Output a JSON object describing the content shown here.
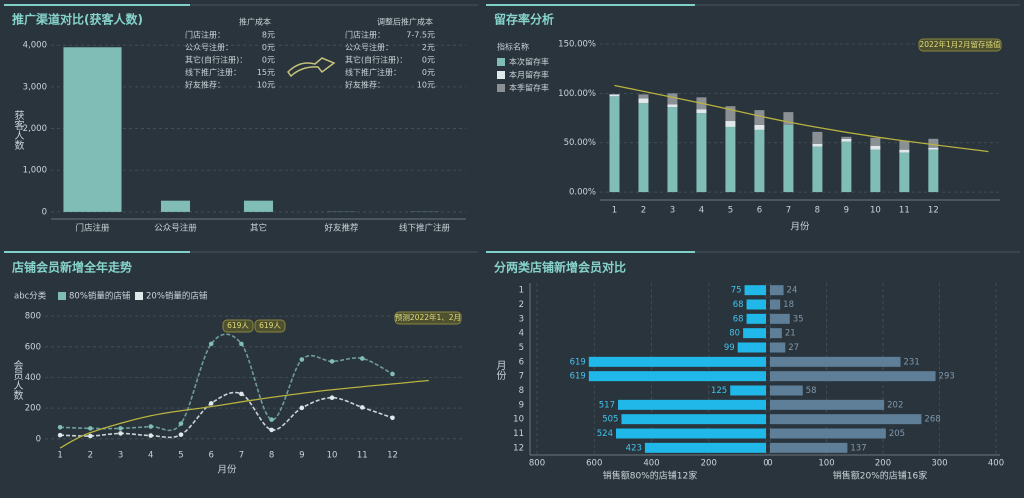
{
  "chart_data": [
    {
      "type": "bar",
      "title": "推广渠道对比(获客人数)",
      "y_label": "获客人数",
      "categories": [
        "门店注册",
        "公众号注册",
        "其它",
        "好友推荐",
        "线下推广注册"
      ],
      "values": [
        3950,
        270,
        270,
        5,
        5
      ],
      "color": "#7fbdb6",
      "ylim": [
        -170,
        4100
      ],
      "yticks": [
        0,
        {
          "value": 1000,
          "label": "1,000"
        },
        {
          "value": 2000,
          "label": "2,000"
        },
        {
          "value": 3000,
          "label": "3,000"
        },
        {
          "value": 4000,
          "label": "4,000"
        }
      ],
      "grid": true,
      "annotations": [
        {
          "title": "推广成本",
          "rows": [
            [
              "门店注册：",
              "8元"
            ],
            [
              "公众号注册：",
              "0元"
            ],
            [
              "其它(自行注册)：",
              "0元"
            ],
            [
              "线下推广注册：",
              "15元"
            ],
            [
              "好友推荐：",
              "10元"
            ]
          ]
        },
        {
          "title": "调整后推广成本",
          "rows": [
            [
              "门店注册：",
              "7-7.5元"
            ],
            [
              "公众号注册：",
              "2元"
            ],
            [
              "其它(自行注册)：",
              "0元"
            ],
            [
              "线下推广注册：",
              "0元"
            ],
            [
              "好友推荐：",
              "10元"
            ]
          ]
        }
      ]
    },
    {
      "type": "stacked_bar",
      "title": "留存率分析",
      "x_label": "月份",
      "legend_title": "指标名称",
      "x": [
        1,
        2,
        3,
        4,
        5,
        6,
        7,
        8,
        9,
        10,
        11,
        12
      ],
      "xticks": [
        1,
        2,
        3,
        4,
        5,
        6,
        7,
        8,
        9,
        10,
        11,
        12
      ],
      "xlim": [
        0.5,
        14.3
      ],
      "series": [
        {
          "name": "本次留存率",
          "color": "#7fbdb6",
          "values": [
            97,
            90,
            86,
            80,
            66,
            63,
            68,
            46,
            51,
            43,
            40,
            43
          ]
        },
        {
          "name": "本月留存率",
          "color": "#dfe8ea",
          "values": [
            2,
            5,
            3,
            4,
            6,
            5,
            0,
            3,
            3,
            4,
            3,
            2
          ]
        },
        {
          "name": "本季留存率",
          "color": "#8a9094",
          "values": [
            0,
            4,
            11,
            12,
            15,
            15,
            13,
            12,
            2,
            8,
            9,
            9
          ]
        }
      ],
      "trend": {
        "color": "#b8b23f",
        "x": [
          1,
          4,
          7,
          10,
          13.9
        ],
        "values": [
          108,
          90,
          71,
          56,
          41
        ]
      },
      "ylim": [
        -8,
        150
      ],
      "yticks": [
        {
          "value": 0,
          "label": "0.00%"
        },
        {
          "value": 50,
          "label": "50.00%"
        },
        {
          "value": 100,
          "label": "100.00%"
        },
        {
          "value": 150,
          "label": "150.00%"
        }
      ],
      "grid": true,
      "annotation": "2022年1月2月留存插值"
    },
    {
      "type": "line",
      "title": "店铺会员新增全年走势",
      "x_label": "月份",
      "y_label": "会员人数",
      "legend_title": "abc分类",
      "x": [
        1,
        2,
        3,
        4,
        5,
        6,
        7,
        8,
        9,
        10,
        11,
        12
      ],
      "xticks": [
        1,
        2,
        3,
        4,
        5,
        6,
        7,
        8,
        9,
        10,
        11,
        12
      ],
      "xlim": [
        0.5,
        14.4
      ],
      "series": [
        {
          "name": "80%销量的店铺",
          "color": "#7fbdb6",
          "values": [
            75,
            68,
            68,
            80,
            99,
            619,
            619,
            125,
            517,
            505,
            524,
            423
          ]
        },
        {
          "name": "20%销量的店铺",
          "color": "#dfe8ea",
          "values": [
            24,
            18,
            35,
            21,
            27,
            231,
            293,
            58,
            202,
            268,
            205,
            137
          ]
        }
      ],
      "trend": {
        "color": "#b8b23f",
        "x": [
          1,
          2,
          4,
          6,
          8,
          10,
          13.2
        ],
        "values": [
          -60,
          40,
          150,
          210,
          270,
          320,
          380
        ]
      },
      "ylim": [
        -60,
        840
      ],
      "yticks": [
        0,
        200,
        400,
        600,
        800
      ],
      "grid": true,
      "annotations": [
        "619人",
        "619人",
        "预测2022年1、2月"
      ]
    },
    {
      "type": "butterfly",
      "title": "分两类店铺新增会员对比",
      "y_label": "月份",
      "categories": [
        "1",
        "2",
        "3",
        "4",
        "5",
        "6",
        "7",
        "8",
        "9",
        "10",
        "11",
        "12"
      ],
      "series": [
        {
          "name": "销售额80%的店铺12家",
          "color": "#1fb8e8",
          "values": [
            75,
            68,
            68,
            80,
            99,
            619,
            619,
            125,
            517,
            505,
            524,
            423
          ],
          "xlim": [
            0,
            800
          ],
          "xticks": [
            800,
            600,
            400,
            200,
            0
          ]
        },
        {
          "name": "销售额20%的店铺16家",
          "color": "#5f7f99",
          "values": [
            24,
            18,
            35,
            21,
            27,
            231,
            293,
            58,
            202,
            268,
            205,
            137
          ],
          "xlim": [
            0,
            400
          ],
          "xticks": [
            0,
            100,
            200,
            300,
            400
          ]
        }
      ],
      "grid": true
    }
  ]
}
